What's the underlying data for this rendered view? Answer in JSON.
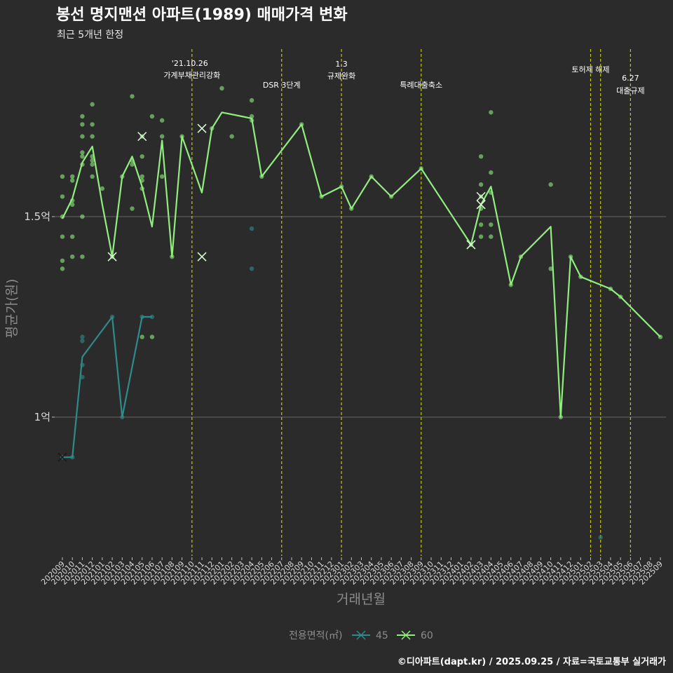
{
  "chart_data": {
    "type": "line",
    "title": "봉선 명지맨션 아파트(1989) 매매가격 변화",
    "subtitle": "최근 5개년 한정",
    "xlabel": "거래년월",
    "ylabel": "평균가(원)",
    "caption": "©디아파트(dapt.kr) / 2025.09.25 / 자료=국토교통부 실거래가",
    "y_ticks": [
      {
        "value": 1.0,
        "label": "1억"
      },
      {
        "value": 1.5,
        "label": "1.5억"
      }
    ],
    "ylim": [
      0.67,
      1.87
    ],
    "categories": [
      "202009",
      "202010",
      "202011",
      "202012",
      "202101",
      "202102",
      "202103",
      "202104",
      "202105",
      "202106",
      "202107",
      "202108",
      "202109",
      "202110",
      "202111",
      "202112",
      "202201",
      "202202",
      "202203",
      "202204",
      "202205",
      "202206",
      "202207",
      "202208",
      "202209",
      "202210",
      "202211",
      "202212",
      "202301",
      "202302",
      "202303",
      "202304",
      "202305",
      "202306",
      "202307",
      "202308",
      "202309",
      "202310",
      "202311",
      "202312",
      "202401",
      "202402",
      "202403",
      "202404",
      "202405",
      "202406",
      "202407",
      "202408",
      "202409",
      "202410",
      "202411",
      "202412",
      "202501",
      "202502",
      "202503",
      "202504",
      "202505",
      "202506",
      "202507",
      "202508",
      "202509"
    ],
    "legend": {
      "title": "전용면적(㎡)",
      "entries": [
        "45",
        "60"
      ]
    },
    "series": [
      {
        "name": "45",
        "color": "#2e8b8b",
        "line": [
          [
            "202009",
            0.9
          ],
          [
            "202010",
            0.9
          ],
          [
            "202011",
            1.15
          ],
          [
            "202102",
            1.25
          ],
          [
            "202103",
            1.0
          ],
          [
            "202105",
            1.25
          ],
          [
            "202106",
            1.25
          ]
        ],
        "points": [
          [
            "202009",
            0.9
          ],
          [
            "202010",
            0.9
          ],
          [
            "202011",
            1.2
          ],
          [
            "202011",
            1.19
          ],
          [
            "202011",
            1.13
          ],
          [
            "202011",
            1.1
          ],
          [
            "202102",
            1.25
          ],
          [
            "202103",
            1.0
          ],
          [
            "202105",
            1.25
          ],
          [
            "202106",
            1.25
          ],
          [
            "202204",
            1.47
          ],
          [
            "202204",
            1.37
          ],
          [
            "202503",
            0.7
          ]
        ],
        "crosses": [
          [
            "202009",
            0.9
          ]
        ]
      },
      {
        "name": "60",
        "color": "#90ee7e",
        "line": [
          [
            "202009",
            1.495
          ],
          [
            "202010",
            1.545
          ],
          [
            "202011",
            1.635
          ],
          [
            "202012",
            1.675
          ],
          [
            "202101",
            1.53
          ],
          [
            "202102",
            1.4
          ],
          [
            "202103",
            1.6
          ],
          [
            "202104",
            1.65
          ],
          [
            "202105",
            1.575
          ],
          [
            "202106",
            1.475
          ],
          [
            "202107",
            1.69
          ],
          [
            "202108",
            1.4
          ],
          [
            "202109",
            1.7
          ],
          [
            "202111",
            1.56
          ],
          [
            "202112",
            1.72
          ],
          [
            "202201",
            1.76
          ],
          [
            "202203",
            1.75
          ],
          [
            "202204",
            1.745
          ],
          [
            "202205",
            1.6
          ],
          [
            "202209",
            1.73
          ],
          [
            "202211",
            1.55
          ],
          [
            "202301",
            1.575
          ],
          [
            "202302",
            1.52
          ],
          [
            "202304",
            1.6
          ],
          [
            "202306",
            1.55
          ],
          [
            "202309",
            1.62
          ],
          [
            "202402",
            1.43
          ],
          [
            "202403",
            1.53
          ],
          [
            "202404",
            1.575
          ],
          [
            "202406",
            1.33
          ],
          [
            "202407",
            1.4
          ],
          [
            "202410",
            1.475
          ],
          [
            "202411",
            1.0
          ],
          [
            "202412",
            1.4
          ],
          [
            "202501",
            1.35
          ],
          [
            "202504",
            1.32
          ],
          [
            "202505",
            1.3
          ],
          [
            "202509",
            1.2
          ]
        ],
        "points": [
          [
            "202009",
            1.6
          ],
          [
            "202009",
            1.55
          ],
          [
            "202009",
            1.5
          ],
          [
            "202009",
            1.45
          ],
          [
            "202009",
            1.39
          ],
          [
            "202009",
            1.37
          ],
          [
            "202010",
            1.6
          ],
          [
            "202010",
            1.59
          ],
          [
            "202010",
            1.54
          ],
          [
            "202010",
            1.53
          ],
          [
            "202010",
            1.45
          ],
          [
            "202010",
            1.4
          ],
          [
            "202011",
            1.75
          ],
          [
            "202011",
            1.73
          ],
          [
            "202011",
            1.7
          ],
          [
            "202011",
            1.66
          ],
          [
            "202011",
            1.65
          ],
          [
            "202011",
            1.63
          ],
          [
            "202011",
            1.5
          ],
          [
            "202011",
            1.4
          ],
          [
            "202012",
            1.78
          ],
          [
            "202012",
            1.73
          ],
          [
            "202012",
            1.7
          ],
          [
            "202012",
            1.65
          ],
          [
            "202012",
            1.64
          ],
          [
            "202012",
            1.63
          ],
          [
            "202012",
            1.6
          ],
          [
            "202101",
            1.57
          ],
          [
            "202102",
            1.4
          ],
          [
            "202103",
            1.6
          ],
          [
            "202104",
            1.8
          ],
          [
            "202104",
            1.64
          ],
          [
            "202104",
            1.63
          ],
          [
            "202104",
            1.52
          ],
          [
            "202105",
            1.7
          ],
          [
            "202105",
            1.65
          ],
          [
            "202105",
            1.6
          ],
          [
            "202105",
            1.59
          ],
          [
            "202105",
            1.57
          ],
          [
            "202105",
            1.2
          ],
          [
            "202106",
            1.75
          ],
          [
            "202106",
            1.2
          ],
          [
            "202107",
            1.74
          ],
          [
            "202107",
            1.7
          ],
          [
            "202107",
            1.6
          ],
          [
            "202108",
            1.4
          ],
          [
            "202109",
            1.7
          ],
          [
            "202112",
            1.72
          ],
          [
            "202201",
            1.82
          ],
          [
            "202202",
            1.7
          ],
          [
            "202204",
            1.79
          ],
          [
            "202204",
            1.75
          ],
          [
            "202204",
            1.74
          ],
          [
            "202205",
            1.6
          ],
          [
            "202209",
            1.73
          ],
          [
            "202211",
            1.55
          ],
          [
            "202301",
            1.575
          ],
          [
            "202302",
            1.52
          ],
          [
            "202304",
            1.6
          ],
          [
            "202306",
            1.55
          ],
          [
            "202309",
            1.62
          ],
          [
            "202402",
            1.43
          ],
          [
            "202403",
            1.65
          ],
          [
            "202403",
            1.58
          ],
          [
            "202403",
            1.55
          ],
          [
            "202403",
            1.52
          ],
          [
            "202403",
            1.48
          ],
          [
            "202403",
            1.45
          ],
          [
            "202404",
            1.76
          ],
          [
            "202404",
            1.61
          ],
          [
            "202404",
            1.56
          ],
          [
            "202404",
            1.48
          ],
          [
            "202404",
            1.45
          ],
          [
            "202406",
            1.33
          ],
          [
            "202407",
            1.4
          ],
          [
            "202410",
            1.58
          ],
          [
            "202410",
            1.37
          ],
          [
            "202411",
            1.0
          ],
          [
            "202412",
            1.4
          ],
          [
            "202501",
            1.35
          ],
          [
            "202504",
            1.32
          ],
          [
            "202505",
            1.3
          ],
          [
            "202509",
            1.2
          ]
        ],
        "crosses": [
          [
            "202102",
            1.4
          ],
          [
            "202105",
            1.7
          ],
          [
            "202111",
            1.72
          ],
          [
            "202111",
            1.4
          ],
          [
            "202402",
            1.43
          ],
          [
            "202403",
            1.55
          ],
          [
            "202403",
            1.53
          ]
        ]
      }
    ],
    "events": [
      {
        "x": "202110",
        "lines": [
          "'21.10.26",
          "가계부채관리강화"
        ]
      },
      {
        "x": "202207",
        "lines": [
          "DSR 3단계"
        ]
      },
      {
        "x": "202301",
        "lines": [
          "1.3",
          "규제완화"
        ]
      },
      {
        "x": "202309",
        "lines": [
          "특례대출축소"
        ]
      },
      {
        "x": "202502",
        "lines": [
          "토허제 해제"
        ]
      },
      {
        "x": "202503",
        "lines": []
      },
      {
        "x": "202506",
        "lines": [
          "6.27",
          "대출규제"
        ]
      }
    ]
  }
}
